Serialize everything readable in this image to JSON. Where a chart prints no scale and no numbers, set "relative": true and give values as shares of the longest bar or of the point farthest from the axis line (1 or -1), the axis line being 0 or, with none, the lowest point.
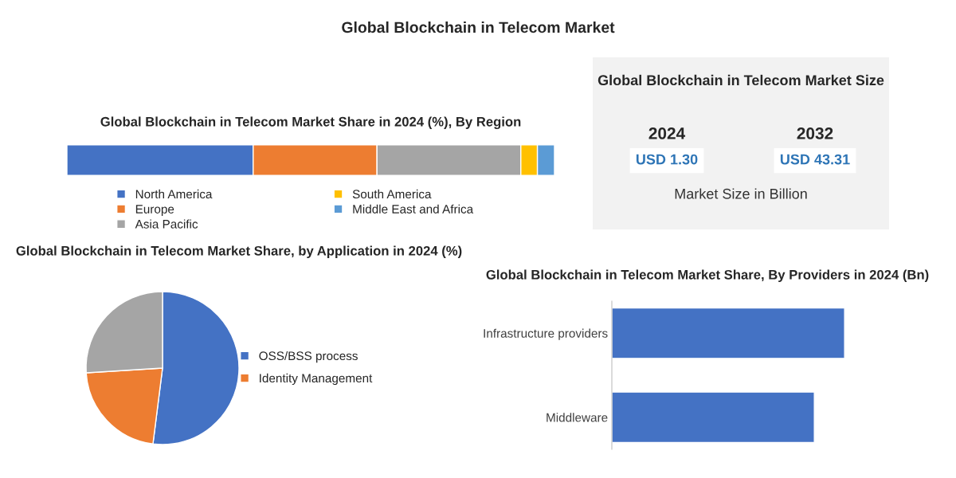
{
  "chart_data": [
    {
      "type": "other",
      "title": "Global Blockchain in Telecom Market"
    },
    {
      "type": "bar",
      "title": "Global Blockchain in Telecom Market Share in 2024 (%), By Region",
      "orientation": "horizontal",
      "stacked": true,
      "relative": true,
      "categories": [
        null
      ],
      "legend": "bottom",
      "tick_labels": false,
      "series": [
        {
          "name": "North America",
          "color": "#4472c4",
          "values": [
            0.382
          ]
        },
        {
          "name": "Europe",
          "color": "#ed7d31",
          "values": [
            0.254
          ]
        },
        {
          "name": "Asia Pacific",
          "color": "#a5a5a5",
          "values": [
            0.295
          ]
        },
        {
          "name": "South America",
          "color": "#ffc000",
          "values": [
            0.034
          ]
        },
        {
          "name": "Middle East and Africa",
          "color": "#5b9bd5",
          "values": [
            0.035
          ]
        }
      ]
    },
    {
      "type": "other",
      "title": "Global Blockchain in Telecom Market Size",
      "annotations": [
        "2024",
        "USD 1.30",
        "2032",
        "USD 43.31",
        "Market Size in Billion"
      ]
    },
    {
      "type": "pie",
      "title": "Global Blockchain in Telecom Market Share, by Application in 2024 (%)",
      "categories": [
        "OSS/BSS process",
        "Identity Management",
        null
      ],
      "values": [
        52,
        22,
        26
      ],
      "colors": [
        "#4472c4",
        "#ed7d31",
        "#a5a5a5"
      ],
      "legend": "right"
    },
    {
      "type": "bar",
      "title": "Global Blockchain in Telecom Market Share, By Providers in 2024 (Bn)",
      "orientation": "horizontal",
      "relative": true,
      "categories": [
        "Infrastructure providers",
        "Middleware"
      ],
      "values": [
        1,
        0.87
      ],
      "color": "#4472c4",
      "tick_labels": "y"
    }
  ]
}
